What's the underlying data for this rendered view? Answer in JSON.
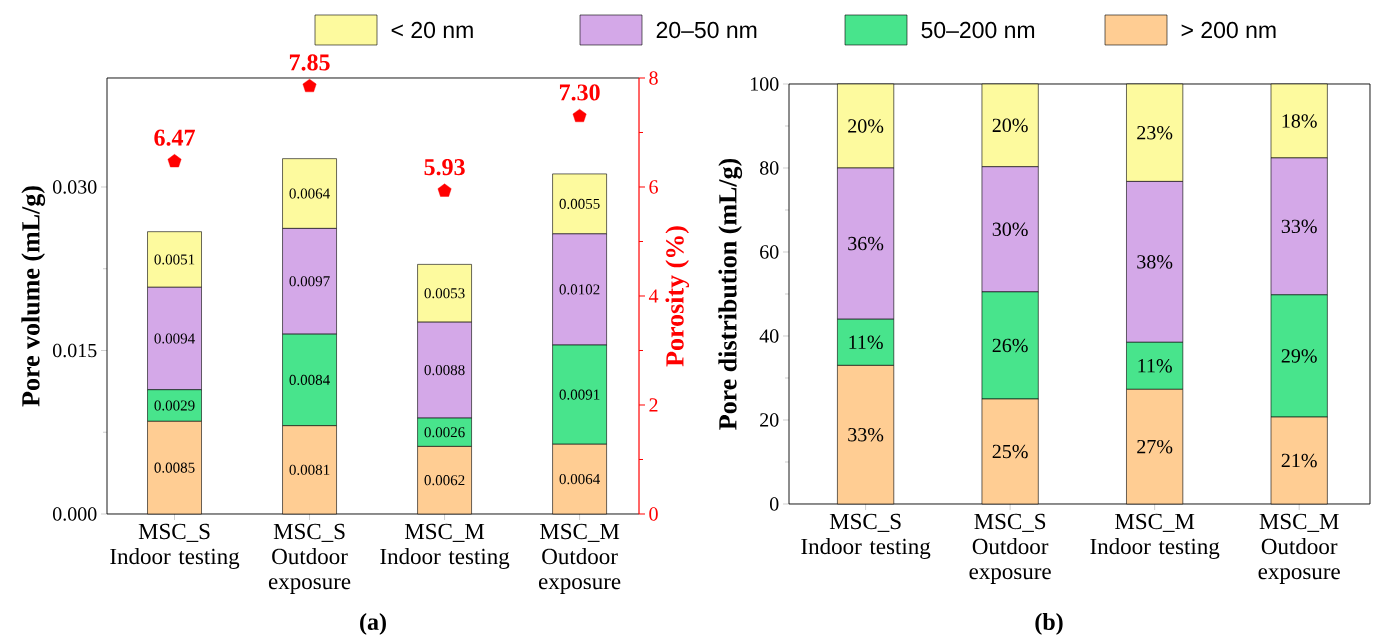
{
  "chart_data": [
    {
      "type": "bar",
      "title": "(a)",
      "ylabel": "Pore volume (mL/g)",
      "y2label": "Porosity (%)",
      "stacked": true,
      "legend": "top",
      "categories": [
        "MSC_S Indoor testing",
        "MSC_S Outdoor exposure",
        "MSC_M Indoor testing",
        "MSC_M Outdoor exposure"
      ],
      "series": [
        {
          "name": "> 200 nm",
          "color": "#ffcd93",
          "values": [
            0.0085,
            0.0081,
            0.0062,
            0.0064
          ],
          "value_labels": [
            "0.0085",
            "0.0081",
            "0.0062",
            "0.0064"
          ]
        },
        {
          "name": "50–200 nm",
          "color": "#48e48c",
          "values": [
            0.0029,
            0.0084,
            0.0026,
            0.0091
          ],
          "value_labels": [
            "0.0029",
            "0.0084",
            "0.0026",
            "0.0091"
          ]
        },
        {
          "name": "20–50 nm",
          "color": "#d4a8e8",
          "values": [
            0.0094,
            0.0097,
            0.0088,
            0.0102
          ],
          "value_labels": [
            "0.0094",
            "0.0097",
            "0.0088",
            "0.0102"
          ]
        },
        {
          "name": "< 20 nm",
          "color": "#fdfa9e",
          "values": [
            0.0051,
            0.0064,
            0.0053,
            0.0055
          ],
          "value_labels": [
            "0.0051",
            "0.0064",
            "0.0053",
            "0.0055"
          ]
        },
        {
          "type": "scatter",
          "axis": "y2",
          "color": "#ff0000",
          "values": [
            6.47,
            7.85,
            5.93,
            7.3
          ],
          "value_labels": [
            "6.47",
            "7.85",
            "5.93",
            "7.30"
          ]
        }
      ],
      "ylim": [
        0,
        0.04
      ],
      "yticks": [
        {
          "value": 0,
          "label": "0.000"
        },
        {
          "value": 0.015,
          "label": "0.015"
        },
        {
          "value": 0.03,
          "label": "0.030"
        }
      ],
      "y2lim": [
        0,
        8
      ],
      "y2ticks": [
        0,
        2,
        4,
        6,
        8
      ]
    },
    {
      "type": "bar",
      "title": "(b)",
      "ylabel": "Pore distribution (mL/g)",
      "stacked": true,
      "categories": [
        "MSC_S Indoor testing",
        "MSC_S Outdoor exposure",
        "MSC_M Indoor testing",
        "MSC_M Outdoor exposure"
      ],
      "series": [
        {
          "color": "#ffcd93",
          "values": [
            33,
            25,
            27.3,
            20.7
          ],
          "value_labels": [
            "33%",
            "25%",
            "27%",
            "21%"
          ]
        },
        {
          "color": "#48e48c",
          "values": [
            11,
            25.5,
            11.2,
            29.1
          ],
          "value_labels": [
            "11%",
            "26%",
            "11%",
            "29%"
          ]
        },
        {
          "color": "#d4a8e8",
          "values": [
            36,
            29.8,
            38.3,
            32.6
          ],
          "value_labels": [
            "36%",
            "30%",
            "38%",
            "33%"
          ]
        },
        {
          "color": "#fdfa9e",
          "values": [
            20,
            19.7,
            23.2,
            17.6
          ],
          "value_labels": [
            "20%",
            "20%",
            "23%",
            "18%"
          ]
        }
      ],
      "ylim": [
        0,
        100
      ],
      "yticks": [
        0,
        20,
        40,
        60,
        80,
        100
      ]
    }
  ]
}
